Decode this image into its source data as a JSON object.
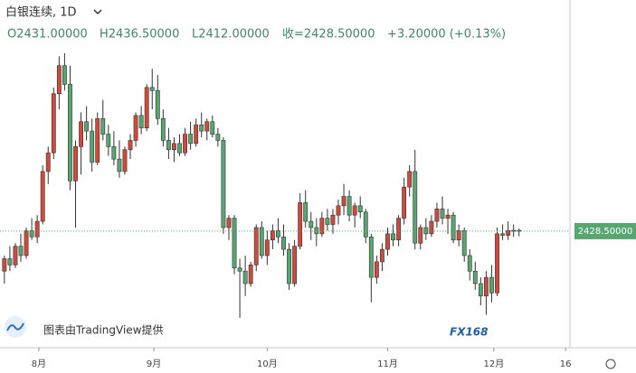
{
  "chart_data": {
    "type": "candlestick",
    "title": "白银连续, 1D",
    "ohlc_text": [
      "O2431.00000",
      "H2436.50000",
      "L2412.00000",
      "收=2428.50000",
      "+3.20000 (+0.13%)"
    ],
    "open": [
      2300,
      2340,
      2320,
      2380,
      2350,
      2430,
      2410,
      2460,
      2620,
      2680,
      2870,
      2960,
      2900,
      2590,
      2700,
      2780,
      2750,
      2650,
      2790,
      2740,
      2700,
      2660,
      2620,
      2690,
      2720,
      2800,
      2760,
      2890,
      2880,
      2790,
      2720,
      2690,
      2710,
      2680,
      2740,
      2710,
      2770,
      2750,
      2780,
      2740,
      2720,
      2440,
      2470,
      2310,
      2300,
      2260,
      2320,
      2440,
      2350,
      2400,
      2430,
      2410,
      2370,
      2260,
      2380,
      2520,
      2460,
      2440,
      2420,
      2470,
      2450,
      2480,
      2510,
      2540,
      2480,
      2510,
      2490,
      2410,
      2280,
      2330,
      2370,
      2420,
      2400,
      2470,
      2570,
      2620,
      2390,
      2440,
      2420,
      2460,
      2500,
      2470,
      2480,
      2400,
      2430,
      2350,
      2300,
      2260,
      2220,
      2280,
      2230,
      2420,
      2415,
      2430,
      2431
    ],
    "high": [
      2350,
      2380,
      2390,
      2420,
      2440,
      2470,
      2480,
      2640,
      2700,
      2890,
      2990,
      3000,
      2960,
      2720,
      2810,
      2830,
      2790,
      2810,
      2850,
      2770,
      2750,
      2720,
      2700,
      2740,
      2810,
      2830,
      2900,
      2950,
      2930,
      2820,
      2760,
      2730,
      2740,
      2760,
      2780,
      2790,
      2810,
      2790,
      2800,
      2760,
      2730,
      2480,
      2480,
      2340,
      2350,
      2330,
      2450,
      2460,
      2430,
      2450,
      2470,
      2450,
      2390,
      2400,
      2550,
      2560,
      2490,
      2470,
      2490,
      2500,
      2500,
      2530,
      2580,
      2560,
      2520,
      2540,
      2500,
      2420,
      2350,
      2390,
      2440,
      2450,
      2480,
      2600,
      2640,
      2690,
      2450,
      2470,
      2480,
      2520,
      2540,
      2500,
      2490,
      2450,
      2440,
      2370,
      2330,
      2280,
      2300,
      2320,
      2440,
      2450,
      2460,
      2450,
      2436.5
    ],
    "low": [
      2260,
      2300,
      2310,
      2330,
      2340,
      2400,
      2390,
      2450,
      2580,
      2660,
      2820,
      2880,
      2560,
      2440,
      2610,
      2720,
      2620,
      2640,
      2720,
      2670,
      2640,
      2600,
      2610,
      2660,
      2700,
      2740,
      2750,
      2820,
      2770,
      2700,
      2660,
      2650,
      2670,
      2670,
      2690,
      2700,
      2730,
      2720,
      2730,
      2700,
      2420,
      2400,
      2290,
      2150,
      2220,
      2250,
      2300,
      2340,
      2320,
      2370,
      2390,
      2350,
      2240,
      2250,
      2370,
      2440,
      2400,
      2380,
      2410,
      2430,
      2420,
      2450,
      2480,
      2460,
      2440,
      2470,
      2390,
      2200,
      2260,
      2300,
      2350,
      2380,
      2380,
      2450,
      2540,
      2370,
      2370,
      2400,
      2410,
      2440,
      2450,
      2420,
      2390,
      2380,
      2330,
      2270,
      2240,
      2190,
      2160,
      2200,
      2220,
      2400,
      2400,
      2410,
      2412
    ],
    "close": [
      2340,
      2320,
      2380,
      2350,
      2430,
      2410,
      2460,
      2620,
      2680,
      2870,
      2960,
      2900,
      2590,
      2700,
      2780,
      2750,
      2650,
      2790,
      2740,
      2700,
      2660,
      2620,
      2690,
      2720,
      2800,
      2760,
      2890,
      2880,
      2790,
      2720,
      2690,
      2710,
      2680,
      2740,
      2710,
      2770,
      2750,
      2780,
      2740,
      2720,
      2440,
      2470,
      2310,
      2300,
      2260,
      2320,
      2440,
      2350,
      2400,
      2430,
      2410,
      2370,
      2260,
      2380,
      2520,
      2460,
      2440,
      2420,
      2470,
      2450,
      2480,
      2510,
      2540,
      2480,
      2510,
      2490,
      2410,
      2280,
      2330,
      2370,
      2420,
      2400,
      2470,
      2570,
      2620,
      2390,
      2440,
      2420,
      2460,
      2500,
      2470,
      2480,
      2400,
      2430,
      2350,
      2300,
      2260,
      2220,
      2280,
      2230,
      2420,
      2415,
      2430,
      2431,
      2428.5
    ],
    "up_color": "#cf4a3c",
    "down_color": "#57a670",
    "ylim": [
      2054,
      3171
    ],
    "xlim": [
      -0.8,
      103.3
    ],
    "xticks": [
      {
        "value": 6.3,
        "label": "8月"
      },
      {
        "value": 27.3,
        "label": "9月"
      },
      {
        "value": 48,
        "label": "10月"
      },
      {
        "value": 70,
        "label": "11月"
      },
      {
        "value": 89.4,
        "label": "12月"
      },
      {
        "value": 102.5,
        "label": "16"
      }
    ],
    "last_price": {
      "value": 2428.5,
      "label": "2428.50000"
    },
    "attribution": "图表由TradingView提供",
    "logo": "FX168"
  }
}
